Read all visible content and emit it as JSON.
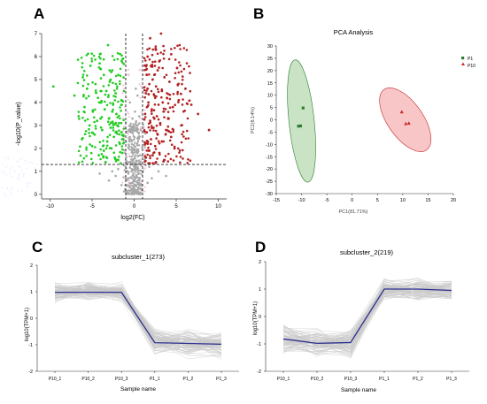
{
  "panels": {
    "a": "A",
    "b": "B",
    "c": "C",
    "d": "D"
  },
  "chart_data": [
    {
      "panel": "A",
      "type": "scatter",
      "title": "",
      "xlabel": "log2(FC)",
      "ylabel": "-log10(P_value)",
      "xlim": [
        -11,
        11
      ],
      "ylim": [
        -0.2,
        7
      ],
      "xticks": [
        "-10",
        "-5",
        "0",
        "5",
        "10"
      ],
      "yticks": [
        "0",
        "1",
        "2",
        "3",
        "4",
        "5",
        "6",
        "7"
      ],
      "thresholds": {
        "fc": [
          -1,
          1
        ],
        "p": 1.3
      },
      "grid": false,
      "colors": {
        "down": "#22cc22",
        "up": "#b22222",
        "ns": "#a8a8a8"
      },
      "points": {
        "down": [
          [
            -3.1,
            6.5
          ],
          [
            -4.1,
            5.7
          ],
          [
            -5.2,
            5.6
          ],
          [
            -2.6,
            5.4
          ],
          [
            -3.6,
            5.2
          ],
          [
            -6.1,
            5.1
          ],
          [
            -2.9,
            4.9
          ],
          [
            -4.6,
            4.8
          ],
          [
            -5.6,
            4.6
          ],
          [
            -3.3,
            4.5
          ],
          [
            -2.2,
            4.4
          ],
          [
            -7.1,
            4.3
          ],
          [
            -4.3,
            4.2
          ],
          [
            -3.9,
            4.0
          ],
          [
            -2.5,
            3.9
          ],
          [
            -5.9,
            3.8
          ],
          [
            -3.5,
            3.7
          ],
          [
            -4.9,
            3.6
          ],
          [
            -2.1,
            3.5
          ],
          [
            -6.6,
            3.4
          ],
          [
            -3.0,
            3.3
          ],
          [
            -4.4,
            3.2
          ],
          [
            -1.8,
            3.1
          ],
          [
            -5.3,
            3.0
          ],
          [
            -2.8,
            2.9
          ],
          [
            -3.8,
            2.8
          ],
          [
            -1.5,
            2.7
          ],
          [
            -4.7,
            2.6
          ],
          [
            -2.4,
            2.5
          ],
          [
            -6.2,
            2.4
          ],
          [
            -3.2,
            2.3
          ],
          [
            -1.7,
            2.2
          ],
          [
            -5.0,
            2.1
          ],
          [
            -2.7,
            2.0
          ],
          [
            -3.6,
            1.9
          ],
          [
            -1.4,
            1.8
          ],
          [
            -4.2,
            1.7
          ],
          [
            -2.3,
            1.6
          ],
          [
            -1.9,
            1.5
          ],
          [
            -3.4,
            1.4
          ],
          [
            -1.6,
            1.35
          ],
          [
            -2.0,
            3.0
          ],
          [
            -1.3,
            2.4
          ],
          [
            -2.6,
            3.6
          ],
          [
            -1.5,
            4.1
          ],
          [
            -4.0,
            3.3
          ],
          [
            -3.7,
            2.1
          ],
          [
            -2.2,
            2.7
          ],
          [
            -9.6,
            4.7
          ]
        ],
        "up": [
          [
            3.2,
            7.0
          ],
          [
            1.9,
            6.8
          ],
          [
            2.6,
            6.3
          ],
          [
            4.4,
            6.1
          ],
          [
            1.6,
            6.0
          ],
          [
            3.0,
            5.8
          ],
          [
            2.0,
            5.6
          ],
          [
            5.1,
            5.5
          ],
          [
            2.8,
            5.4
          ],
          [
            1.5,
            5.2
          ],
          [
            3.6,
            5.1
          ],
          [
            2.2,
            5.0
          ],
          [
            4.2,
            4.9
          ],
          [
            1.8,
            4.8
          ],
          [
            2.6,
            4.7
          ],
          [
            6.1,
            4.6
          ],
          [
            3.3,
            4.5
          ],
          [
            1.4,
            4.4
          ],
          [
            2.4,
            4.3
          ],
          [
            3.9,
            4.2
          ],
          [
            5.3,
            4.1
          ],
          [
            1.7,
            4.0
          ],
          [
            2.9,
            3.9
          ],
          [
            4.6,
            3.8
          ],
          [
            2.1,
            3.7
          ],
          [
            3.5,
            3.6
          ],
          [
            1.3,
            3.5
          ],
          [
            7.6,
            3.5
          ],
          [
            2.7,
            3.4
          ],
          [
            4.1,
            3.3
          ],
          [
            1.9,
            3.2
          ],
          [
            3.1,
            3.1
          ],
          [
            5.6,
            3.0
          ],
          [
            2.3,
            2.9
          ],
          [
            3.8,
            2.8
          ],
          [
            1.5,
            2.7
          ],
          [
            2.8,
            2.6
          ],
          [
            4.4,
            2.5
          ],
          [
            2.0,
            2.4
          ],
          [
            3.3,
            2.3
          ],
          [
            1.6,
            2.2
          ],
          [
            2.5,
            2.1
          ],
          [
            4.8,
            2.0
          ],
          [
            1.8,
            1.9
          ],
          [
            3.0,
            1.8
          ],
          [
            2.2,
            1.7
          ],
          [
            1.4,
            1.6
          ],
          [
            3.6,
            1.5
          ],
          [
            2.6,
            1.4
          ],
          [
            1.7,
            1.35
          ],
          [
            8.9,
            2.8
          ],
          [
            6.8,
            3.9
          ],
          [
            2.4,
            3.3
          ],
          [
            1.6,
            4.6
          ],
          [
            3.4,
            4.0
          ]
        ],
        "ns": [
          [
            0.1,
            0.2
          ],
          [
            -0.2,
            0.5
          ],
          [
            0.3,
            0.8
          ],
          [
            -0.5,
            0.3
          ],
          [
            0.6,
            0.6
          ],
          [
            -0.3,
            1.0
          ],
          [
            0.2,
            1.2
          ],
          [
            -0.7,
            0.7
          ],
          [
            0.8,
            0.4
          ],
          [
            -0.1,
            1.5
          ],
          [
            0.4,
            1.8
          ],
          [
            -0.6,
            2.1
          ],
          [
            0.5,
            2.4
          ],
          [
            -0.4,
            2.7
          ],
          [
            0.3,
            3.0
          ],
          [
            -0.2,
            3.3
          ],
          [
            0.1,
            3.6
          ],
          [
            -0.8,
            1.4
          ],
          [
            0.7,
            1.7
          ],
          [
            -0.5,
            4.0
          ],
          [
            0.4,
            4.3
          ],
          [
            -0.1,
            0.9
          ],
          [
            0.0,
            2.0
          ],
          [
            -0.3,
            2.9
          ],
          [
            0.6,
            3.4
          ],
          [
            -1.5,
            0.4
          ],
          [
            1.6,
            0.5
          ],
          [
            -2.2,
            0.8
          ],
          [
            2.1,
            0.7
          ],
          [
            -3.0,
            0.6
          ],
          [
            2.9,
            1.0
          ],
          [
            -1.9,
            1.1
          ],
          [
            1.8,
            1.2
          ],
          [
            -4.1,
            0.9
          ],
          [
            3.8,
            0.8
          ],
          [
            -2.6,
            1.0
          ],
          [
            0.9,
            0.2
          ],
          [
            -0.9,
            0.1
          ],
          [
            0.2,
            4.6
          ]
        ]
      }
    },
    {
      "panel": "B",
      "type": "scatter",
      "title": "PCA Analysis",
      "xlabel": "PC1(81.71%)",
      "ylabel": "PC2(8.14%)",
      "xlim": [
        -15,
        20
      ],
      "ylim": [
        -30,
        30
      ],
      "xticks": [
        "-15",
        "-10",
        "-5",
        "0",
        "5",
        "10",
        "15",
        "20"
      ],
      "yticks": [
        "-30",
        "-25",
        "-20",
        "-15",
        "-10",
        "-5",
        "0",
        "5",
        "10",
        "15",
        "20",
        "25",
        "30"
      ],
      "grid": false,
      "legend": "top-right",
      "series": [
        {
          "name": "P1",
          "color": "#2e7d32",
          "fill": "#b7d9b0",
          "marker": "square",
          "points": [
            [
              -10.2,
              -2.5
            ],
            [
              -9.7,
              4.8
            ],
            [
              -10.6,
              -2.6
            ]
          ],
          "ellipse": {
            "cx": -10,
            "cy": -0.5,
            "rx": 2.5,
            "ry": 25,
            "angle": -6
          }
        },
        {
          "name": "P10",
          "color": "#c62828",
          "fill": "#f6b3b3",
          "marker": "triangle",
          "points": [
            [
              9.8,
              3.2
            ],
            [
              10.6,
              -1.6
            ],
            [
              11.2,
              -1.4
            ]
          ],
          "ellipse": {
            "cx": 10.5,
            "cy": 0.0,
            "rx": 3.5,
            "ry": 15,
            "angle": -35
          }
        }
      ]
    },
    {
      "panel": "C",
      "type": "line",
      "title": "subcluster_1(273)",
      "xlabel": "Sample name",
      "ylabel": "log10(TPM+1)",
      "categories": [
        "P10_1",
        "P10_2",
        "P10_3",
        "P1_1",
        "P1_2",
        "P1_3"
      ],
      "ylim": [
        -2,
        2
      ],
      "yticks": [
        "-2",
        "-1",
        "0",
        "1",
        "2"
      ],
      "grid": false,
      "series": [
        {
          "values": [
            0.98,
            0.98,
            0.98,
            -0.92,
            -0.95,
            -0.98
          ]
        }
      ],
      "band": {
        "upper": [
          1.45,
          1.4,
          1.4,
          -0.3,
          -0.3,
          -0.35
        ],
        "lower": [
          0.55,
          0.6,
          0.6,
          -1.45,
          -1.55,
          -1.6
        ]
      }
    },
    {
      "panel": "D",
      "type": "line",
      "title": "subcluster_2(219)",
      "xlabel": "Sample name",
      "ylabel": "log10(TPM+1)",
      "categories": [
        "P10_1",
        "P10_2",
        "P10_3",
        "P1_1",
        "P1_2",
        "P1_3"
      ],
      "ylim": [
        -2,
        2
      ],
      "yticks": [
        "-2",
        "-1",
        "0",
        "1",
        "2"
      ],
      "grid": false,
      "series": [
        {
          "values": [
            -0.82,
            -0.98,
            -0.95,
            1.0,
            1.0,
            0.95
          ]
        }
      ],
      "band": {
        "upper": [
          -0.2,
          -0.35,
          -0.3,
          1.45,
          1.45,
          1.4
        ],
        "lower": [
          -1.5,
          -1.6,
          -1.6,
          0.55,
          0.55,
          0.5
        ]
      }
    }
  ]
}
